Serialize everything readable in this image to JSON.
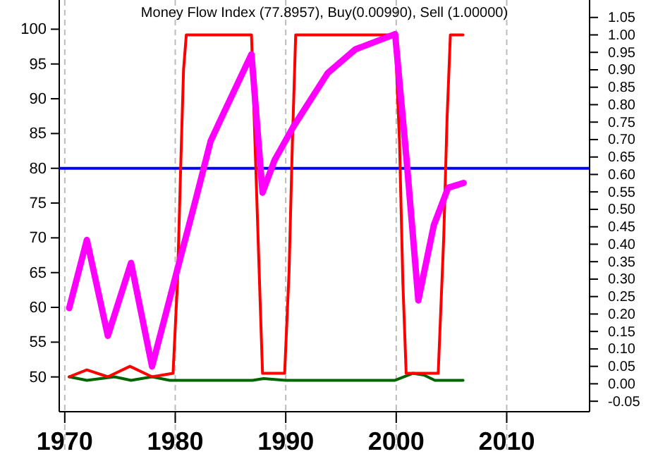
{
  "chart_data": {
    "type": "line",
    "title": "Money Flow Index (77.8957), Buy(0.00990), Sell (1.00000)",
    "xlim": [
      1969.5,
      2017.5
    ],
    "xticks": [
      1970,
      1980,
      1990,
      2000,
      2010
    ],
    "grid": "x",
    "ylim": [
      45,
      104.2
    ],
    "yticks": [
      50,
      55,
      60,
      65,
      70,
      75,
      80,
      85,
      90,
      95,
      100
    ],
    "y2lim": [
      -0.08,
      1.1
    ],
    "y2ticks": [
      {
        "value": -0.05,
        "label": "-0.05"
      },
      {
        "value": 0,
        "label": "0.00"
      },
      {
        "value": 0.05,
        "label": "0.05"
      },
      {
        "value": 0.1,
        "label": "0.10"
      },
      {
        "value": 0.15,
        "label": "0.15"
      },
      {
        "value": 0.2,
        "label": "0.20"
      },
      {
        "value": 0.25,
        "label": "0.25"
      },
      {
        "value": 0.3,
        "label": "0.30"
      },
      {
        "value": 0.35,
        "label": "0.35"
      },
      {
        "value": 0.4,
        "label": "0.40"
      },
      {
        "value": 0.45,
        "label": "0.45"
      },
      {
        "value": 0.5,
        "label": "0.50"
      },
      {
        "value": 0.55,
        "label": "0.55"
      },
      {
        "value": 0.6,
        "label": "0.60"
      },
      {
        "value": 0.65,
        "label": "0.65"
      },
      {
        "value": 0.7,
        "label": "0.70"
      },
      {
        "value": 0.75,
        "label": "0.75"
      },
      {
        "value": 0.8,
        "label": "0.80"
      },
      {
        "value": 0.85,
        "label": "0.85"
      },
      {
        "value": 0.9,
        "label": "0.90"
      },
      {
        "value": 0.95,
        "label": "0.95"
      },
      {
        "value": 1,
        "label": "1.00"
      },
      {
        "value": 1.05,
        "label": "1.05"
      }
    ],
    "ref_lines": [
      {
        "axis": "y",
        "value": 80,
        "color": "#0000ff"
      }
    ],
    "series": [
      {
        "color": "#ff00ff",
        "x": [
          1970.4,
          1972.0,
          1973.9,
          1976.0,
          1977.9,
          1980.0,
          1981.9,
          1983.2,
          1984.4,
          1986.9,
          1987.9,
          1989.0,
          1990.7,
          1993.8,
          1996.3,
          1999.9,
          2000.9,
          2002.0,
          2003.4,
          2004.7,
          2006.1
        ],
        "values": [
          59.9,
          69.7,
          55.9,
          66.4,
          51.5,
          64.3,
          75.8,
          83.9,
          88,
          96.4,
          76.5,
          81.2,
          86,
          93.7,
          97.1,
          99.3,
          81.9,
          61.0,
          71.8,
          77.2,
          77.9
        ]
      },
      {
        "color": "#ff0000",
        "axis": "y2",
        "x": [
          1970.4,
          1972.0,
          1973.9,
          1975.9,
          1977.9,
          1979.8,
          1980.2,
          1980.5,
          1980.75,
          1981.0,
          1986.9,
          1987.3,
          1987.7,
          1987.9,
          1989.9,
          1990.3,
          1990.6,
          1990.9,
          1999.9,
          2000.3,
          2000.6,
          2000.9,
          2003.8,
          2004.3,
          2004.6,
          2004.9,
          2006.05
        ],
        "values": [
          0.02,
          0.04,
          0.02,
          0.05,
          0.02,
          0.03,
          0.29,
          0.63,
          0.9,
          1.0,
          1.0,
          0.61,
          0.22,
          0.03,
          0.03,
          0.32,
          0.69,
          1.0,
          1.0,
          0.69,
          0.29,
          0.03,
          0.03,
          0.42,
          0.76,
          1.0,
          1.0
        ]
      },
      {
        "color": "#006400",
        "axis": "y2",
        "x": [
          1970.4,
          1972.0,
          1974.5,
          1976.0,
          1977.9,
          1979.5,
          1987.0,
          1988.0,
          1990.0,
          1999.9,
          2001.5,
          2002.5,
          2003.5,
          2006.05
        ],
        "values": [
          0.02,
          0.01,
          0.02,
          0.01,
          0.02,
          0.01,
          0.01,
          0.015,
          0.01,
          0.01,
          0.03,
          0.025,
          0.01,
          0.01
        ]
      }
    ]
  }
}
